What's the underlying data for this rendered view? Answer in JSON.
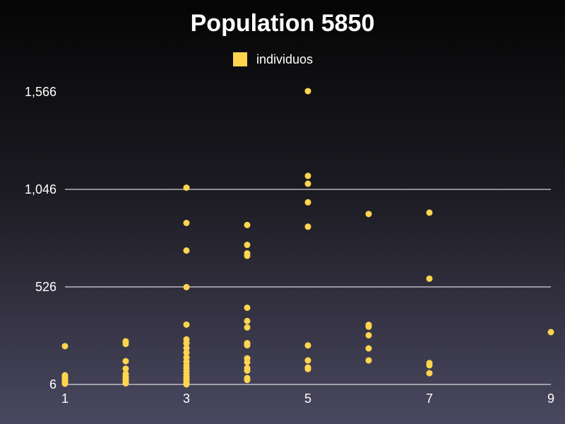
{
  "chart_data": {
    "type": "scatter",
    "title": "Population 5850",
    "xlabel": "",
    "ylabel": "",
    "xlim": [
      1,
      9
    ],
    "ylim": [
      6,
      1566
    ],
    "x_ticks": [
      "1",
      "3",
      "5",
      "7",
      "9"
    ],
    "y_ticks": [
      "6",
      "526",
      "1,046",
      "1,566"
    ],
    "grid": "horizontal",
    "legend_position": "top-center",
    "colors": {
      "series": "#ffd54f",
      "grid": "#ffffff"
    },
    "series": [
      {
        "name": "individuos",
        "points": [
          [
            1,
            210
          ],
          [
            1,
            55
          ],
          [
            1,
            45
          ],
          [
            1,
            38
          ],
          [
            1,
            30
          ],
          [
            1,
            22
          ],
          [
            1,
            15
          ],
          [
            1,
            10
          ],
          [
            2,
            236
          ],
          [
            2,
            222
          ],
          [
            2,
            130
          ],
          [
            2,
            90
          ],
          [
            2,
            62
          ],
          [
            2,
            48
          ],
          [
            2,
            36
          ],
          [
            2,
            26
          ],
          [
            2,
            18
          ],
          [
            2,
            12
          ],
          [
            3,
            1055
          ],
          [
            3,
            867
          ],
          [
            3,
            720
          ],
          [
            3,
            525
          ],
          [
            3,
            325
          ],
          [
            3,
            246
          ],
          [
            3,
            226
          ],
          [
            3,
            200
          ],
          [
            3,
            176
          ],
          [
            3,
            150
          ],
          [
            3,
            128
          ],
          [
            3,
            108
          ],
          [
            3,
            92
          ],
          [
            3,
            76
          ],
          [
            3,
            60
          ],
          [
            3,
            46
          ],
          [
            3,
            34
          ],
          [
            3,
            22
          ],
          [
            3,
            12
          ],
          [
            3,
            6
          ],
          [
            4,
            856
          ],
          [
            4,
            750
          ],
          [
            4,
            705
          ],
          [
            4,
            692
          ],
          [
            4,
            415
          ],
          [
            4,
            344
          ],
          [
            4,
            310
          ],
          [
            4,
            226
          ],
          [
            4,
            215
          ],
          [
            4,
            145
          ],
          [
            4,
            125
          ],
          [
            4,
            93
          ],
          [
            4,
            80
          ],
          [
            4,
            40
          ],
          [
            4,
            30
          ],
          [
            5,
            1570
          ],
          [
            5,
            1118
          ],
          [
            5,
            1076
          ],
          [
            5,
            977
          ],
          [
            5,
            847
          ],
          [
            5,
            214
          ],
          [
            5,
            134
          ],
          [
            5,
            96
          ],
          [
            5,
            88
          ],
          [
            6,
            915
          ],
          [
            6,
            324
          ],
          [
            6,
            314
          ],
          [
            6,
            268
          ],
          [
            6,
            198
          ],
          [
            6,
            134
          ],
          [
            7,
            922
          ],
          [
            7,
            570
          ],
          [
            7,
            120
          ],
          [
            7,
            108
          ],
          [
            7,
            66
          ],
          [
            9,
            285
          ]
        ]
      }
    ]
  }
}
